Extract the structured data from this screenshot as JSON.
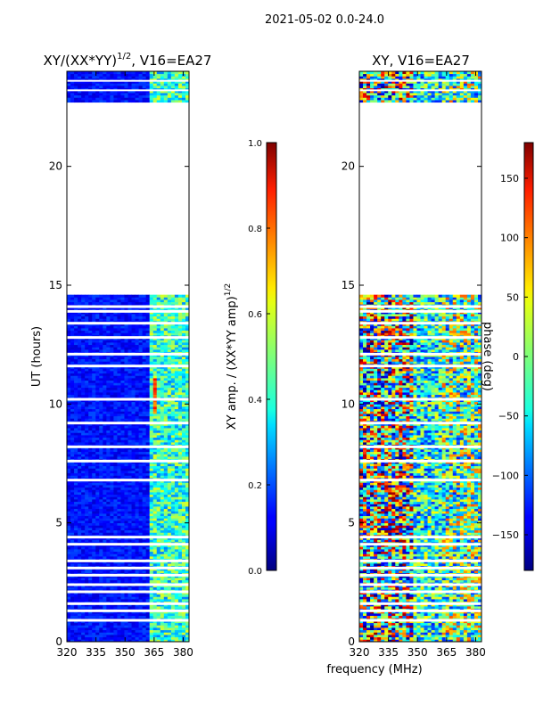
{
  "figure_title": "2021-05-02 0.0-24.0",
  "chart_data": [
    {
      "type": "heatmap",
      "title_main": "XY/(XX*YY)",
      "title_sup": "1/2",
      "title_rest": ", V16=EA27",
      "xlabel": "",
      "ylabel": "UT (hours)",
      "xlim": [
        320,
        383
      ],
      "ylim": [
        0,
        24
      ],
      "xticks": [
        "320",
        "335",
        "350",
        "365",
        "380"
      ],
      "xtick_values": [
        320,
        335,
        350,
        365,
        380
      ],
      "yticks": [
        "0",
        "5",
        "10",
        "15",
        "20"
      ],
      "ytick_values": [
        0,
        5,
        10,
        15,
        20
      ],
      "data_time_ranges_hours": [
        [
          0,
          14.6
        ],
        [
          22.7,
          24.0
        ]
      ],
      "colorbar": {
        "label_main": "XY amp. / (XX*YY amp)",
        "label_sup": "1/2",
        "min": 0.0,
        "max": 1.0,
        "ticks": [
          "0.0",
          "0.2",
          "0.4",
          "0.6",
          "0.8",
          "1.0"
        ],
        "tick_values": [
          0.0,
          0.2,
          0.4,
          0.6,
          0.8,
          1.0
        ],
        "colormap": "jet"
      }
    },
    {
      "type": "heatmap",
      "title_main": "XY, V16=EA27",
      "xlabel": "frequency (MHz)",
      "ylabel": "",
      "xlim": [
        320,
        383
      ],
      "ylim": [
        0,
        24
      ],
      "xticks": [
        "320",
        "335",
        "350",
        "365",
        "380"
      ],
      "xtick_values": [
        320,
        335,
        350,
        365,
        380
      ],
      "yticks": [
        "0",
        "5",
        "10",
        "15",
        "20"
      ],
      "ytick_values": [
        0,
        5,
        10,
        15,
        20
      ],
      "data_time_ranges_hours": [
        [
          0,
          14.6
        ],
        [
          22.7,
          24.0
        ]
      ],
      "colorbar": {
        "label_main": "phase (deg)",
        "min": -180,
        "max": 180,
        "ticks": [
          "150",
          "100",
          "50",
          "0",
          "−50",
          "−100",
          "−150"
        ],
        "tick_values": [
          150,
          100,
          50,
          0,
          -50,
          -100,
          -150
        ],
        "colormap": "jet"
      }
    }
  ]
}
